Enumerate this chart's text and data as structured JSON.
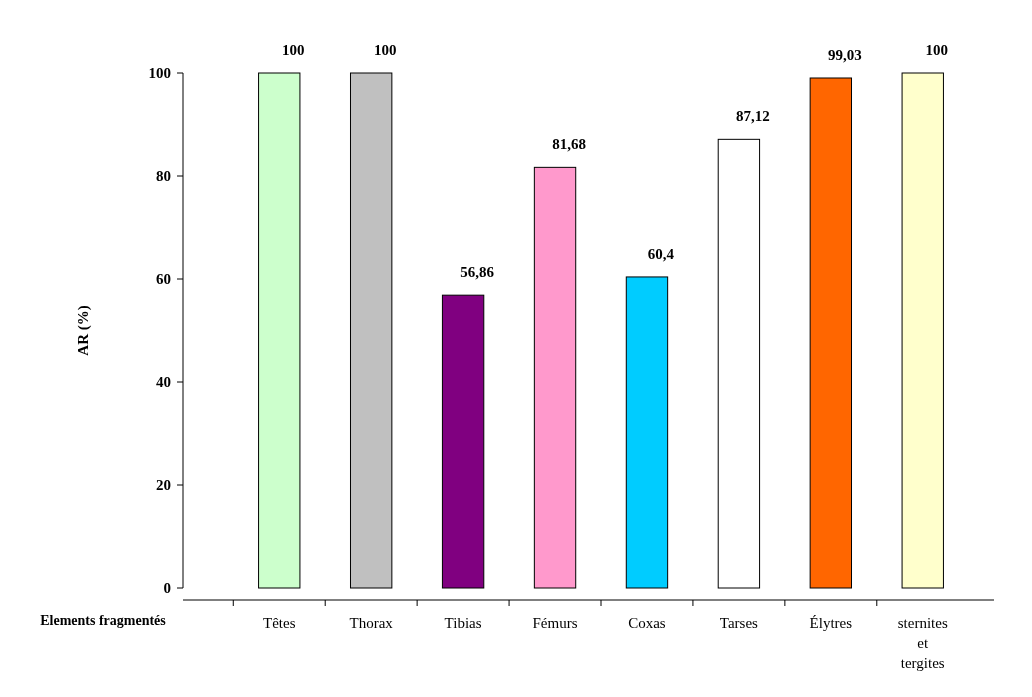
{
  "chart_data": {
    "type": "bar",
    "xlabel": "Elements fragmentés",
    "ylabel": "AR (%)",
    "categories": [
      "Têtes",
      "Thorax",
      "Tibias",
      "Fémurs",
      "Coxas",
      "Tarses",
      "Élytres",
      "sternites et tergites"
    ],
    "values": [
      100,
      100,
      56.86,
      81.68,
      60.4,
      87.12,
      99.03,
      100
    ],
    "colors": [
      "#ccffcc",
      "#c0c0c0",
      "#800080",
      "#ff99cc",
      "#00ccff",
      "#ffffff",
      "#ff6600",
      "#ffffcc"
    ],
    "value_labels": [
      "100",
      "100",
      "56,86",
      "81,68",
      "60,4",
      "87,12",
      "99,03",
      "100"
    ],
    "ylim": [
      0,
      100
    ],
    "yticks": [
      0,
      20,
      40,
      60,
      80,
      100
    ],
    "grid": false
  }
}
